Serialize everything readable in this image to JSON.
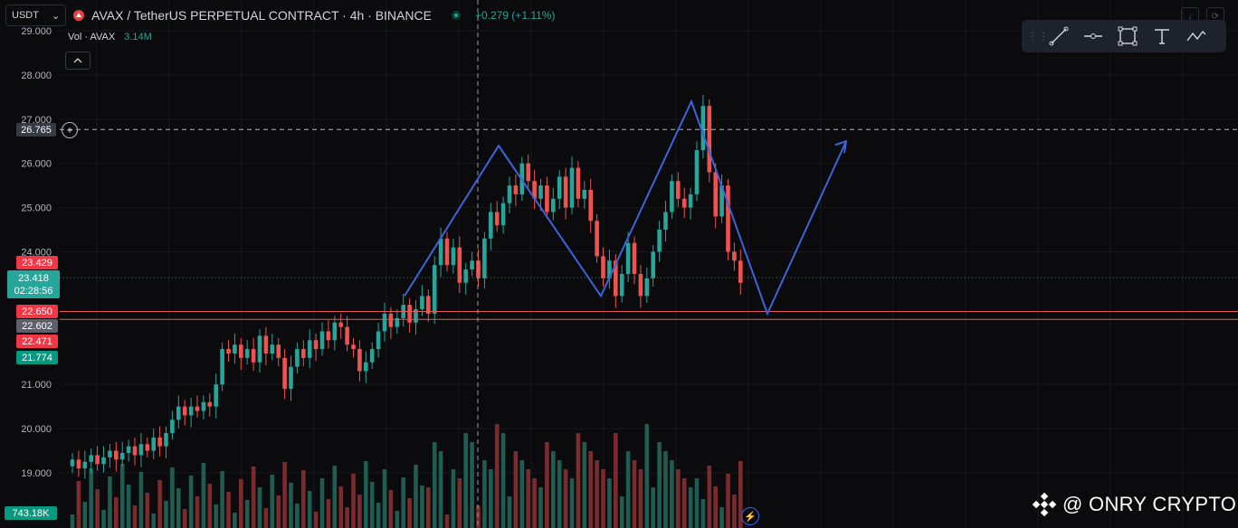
{
  "header": {
    "currency": "USDT",
    "currency_caret": "⌄",
    "title": "AVAX / TetherUS PERPETUAL CONTRACT · 4h · BINANCE",
    "change": "+0.279 (+1.11%)"
  },
  "volume": {
    "label": "Vol · AVAX",
    "value": "3.14M",
    "axis_label": "743.18K"
  },
  "crosshair_price": "26.765",
  "price_labels": [
    {
      "text": "23.429",
      "style": "red"
    },
    {
      "text": "22.650",
      "style": "red"
    },
    {
      "text": "22.602",
      "style": "gray"
    },
    {
      "text": "22.471",
      "style": "red"
    },
    {
      "text": "21.774",
      "style": "green"
    }
  ],
  "current": {
    "price": "23.418",
    "countdown": "02:28:56"
  },
  "watermark": "@ ONRY CRYPTO",
  "toolbar": [
    "trend-line-icon",
    "horizontal-ray-icon",
    "rectangle-icon",
    "text-icon",
    "path-icon"
  ],
  "chart_data": {
    "type": "candlestick",
    "y_axis_ticks": [
      19.0,
      20.0,
      21.0,
      24.0,
      25.0,
      26.0,
      27.0,
      28.0,
      29.0
    ],
    "y_axis_labels": [
      "19.000",
      "20.000",
      "21.000",
      "24.000",
      "25.000",
      "26.000",
      "27.000",
      "28.000",
      "29.000"
    ],
    "ylim": [
      18.15,
      29.25
    ],
    "candle_count": 108,
    "candles": [
      [
        19.15,
        19.3
      ],
      [
        19.3,
        19.1
      ],
      [
        19.1,
        19.25
      ],
      [
        19.25,
        19.4
      ],
      [
        19.4,
        19.2
      ],
      [
        19.2,
        19.35
      ],
      [
        19.35,
        19.5
      ],
      [
        19.5,
        19.3
      ],
      [
        19.3,
        19.45
      ],
      [
        19.45,
        19.6
      ],
      [
        19.6,
        19.4
      ],
      [
        19.4,
        19.65
      ],
      [
        19.65,
        19.5
      ],
      [
        19.5,
        19.8
      ],
      [
        19.8,
        19.6
      ],
      [
        19.6,
        19.9
      ],
      [
        19.9,
        20.2
      ],
      [
        20.2,
        20.5
      ],
      [
        20.5,
        20.3
      ],
      [
        20.3,
        20.5
      ],
      [
        20.5,
        20.4
      ],
      [
        20.4,
        20.6
      ],
      [
        20.6,
        20.5
      ],
      [
        20.5,
        21.0
      ],
      [
        21.0,
        21.8
      ],
      [
        21.8,
        21.7
      ],
      [
        21.7,
        21.9
      ],
      [
        21.9,
        21.6
      ],
      [
        21.6,
        21.8
      ],
      [
        21.8,
        21.5
      ],
      [
        21.5,
        22.1
      ],
      [
        22.1,
        21.7
      ],
      [
        21.7,
        21.9
      ],
      [
        21.9,
        21.6
      ],
      [
        21.6,
        20.9
      ],
      [
        20.9,
        21.4
      ],
      [
        21.4,
        21.8
      ],
      [
        21.8,
        21.6
      ],
      [
        21.6,
        22.0
      ],
      [
        22.0,
        21.8
      ],
      [
        21.8,
        22.2
      ],
      [
        22.2,
        22.0
      ],
      [
        22.0,
        22.4
      ],
      [
        22.4,
        22.3
      ],
      [
        22.3,
        21.9
      ],
      [
        21.9,
        21.8
      ],
      [
        21.8,
        21.3
      ],
      [
        21.3,
        21.5
      ],
      [
        21.5,
        21.8
      ],
      [
        21.8,
        22.2
      ],
      [
        22.2,
        22.6
      ],
      [
        22.6,
        22.3
      ],
      [
        22.3,
        22.5
      ],
      [
        22.5,
        22.8
      ],
      [
        22.8,
        22.4
      ],
      [
        22.4,
        22.7
      ],
      [
        22.7,
        23.0
      ],
      [
        23.0,
        22.6
      ],
      [
        22.6,
        23.7
      ],
      [
        23.7,
        24.3
      ],
      [
        24.3,
        23.7
      ],
      [
        23.7,
        24.1
      ],
      [
        24.1,
        23.3
      ],
      [
        23.3,
        23.6
      ],
      [
        23.6,
        23.8
      ],
      [
        23.8,
        23.4
      ],
      [
        23.4,
        24.3
      ],
      [
        24.3,
        24.9
      ],
      [
        24.9,
        24.6
      ],
      [
        24.6,
        25.1
      ],
      [
        25.1,
        25.5
      ],
      [
        25.5,
        25.3
      ],
      [
        25.3,
        26.0
      ],
      [
        26.0,
        25.6
      ],
      [
        25.6,
        25.2
      ],
      [
        25.2,
        25.5
      ],
      [
        25.5,
        24.9
      ],
      [
        24.9,
        25.2
      ],
      [
        25.2,
        25.7
      ],
      [
        25.7,
        25.0
      ],
      [
        25.0,
        25.9
      ],
      [
        25.9,
        25.2
      ],
      [
        25.2,
        25.4
      ],
      [
        25.4,
        24.7
      ],
      [
        24.7,
        23.9
      ],
      [
        23.9,
        23.4
      ],
      [
        23.4,
        23.8
      ],
      [
        23.8,
        23.0
      ],
      [
        23.0,
        23.5
      ],
      [
        23.5,
        24.2
      ],
      [
        24.2,
        23.5
      ],
      [
        23.5,
        23.0
      ],
      [
        23.0,
        23.4
      ],
      [
        23.4,
        24.0
      ],
      [
        24.0,
        24.5
      ],
      [
        24.5,
        24.9
      ],
      [
        24.9,
        25.6
      ],
      [
        25.6,
        25.2
      ],
      [
        25.2,
        25.0
      ],
      [
        25.0,
        25.3
      ],
      [
        25.3,
        26.3
      ],
      [
        26.3,
        27.3
      ],
      [
        27.3,
        25.8
      ],
      [
        25.8,
        24.8
      ],
      [
        24.8,
        25.5
      ],
      [
        25.5,
        24.0
      ],
      [
        24.0,
        23.8
      ],
      [
        23.8,
        23.3
      ]
    ],
    "horizontal_lines": [
      22.65,
      22.471
    ],
    "dashed_level": 26.765,
    "pattern_path": [
      [
        23.0
      ],
      [
        26.4
      ],
      [
        23.0
      ],
      [
        27.4
      ],
      [
        22.6
      ],
      [
        26.5
      ]
    ]
  }
}
